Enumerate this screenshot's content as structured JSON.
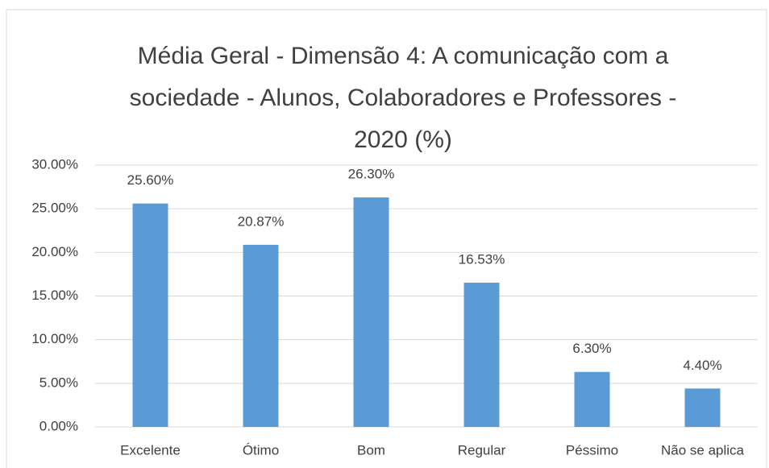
{
  "chart_data": {
    "type": "bar",
    "title": "Média Geral - Dimensão 4: A comunicação com a sociedade - Alunos, Colaboradores e Professores - 2020 (%)",
    "categories": [
      "Excelente",
      "Ótimo",
      "Bom",
      "Regular",
      "Péssimo",
      "Não se aplica"
    ],
    "values": [
      25.6,
      20.87,
      26.3,
      16.53,
      6.3,
      4.4
    ],
    "value_labels": [
      "25.60%",
      "20.87%",
      "26.30%",
      "16.53%",
      "6.30%",
      "4.40%"
    ],
    "color": "#5b9bd5",
    "ylim": [
      0,
      30
    ],
    "yticks": [
      {
        "value": 0,
        "label": "0.00%"
      },
      {
        "value": 5,
        "label": "5.00%"
      },
      {
        "value": 10,
        "label": "10.00%"
      },
      {
        "value": 15,
        "label": "15.00%"
      },
      {
        "value": 20,
        "label": "20.00%"
      },
      {
        "value": 25,
        "label": "25.00%"
      },
      {
        "value": 30,
        "label": "30.00%"
      }
    ],
    "grid": true
  }
}
